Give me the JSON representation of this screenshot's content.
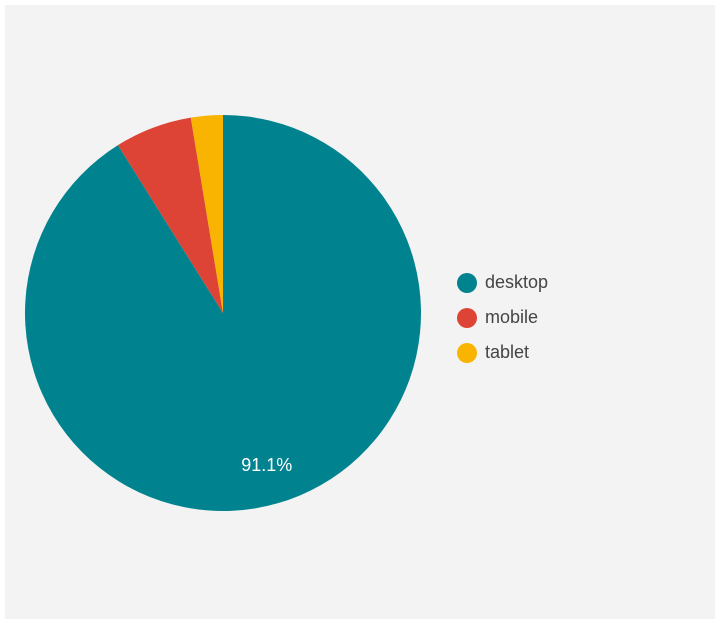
{
  "chart_data": {
    "type": "pie",
    "title": "",
    "slices": [
      {
        "label": "desktop",
        "value": 91.1,
        "color": "#00838f",
        "data_label": "91.1%"
      },
      {
        "label": "mobile",
        "value": 6.3,
        "color": "#dd4436",
        "data_label": ""
      },
      {
        "label": "tablet",
        "value": 2.6,
        "color": "#f8b400",
        "data_label": ""
      }
    ],
    "legend_position": "right"
  }
}
